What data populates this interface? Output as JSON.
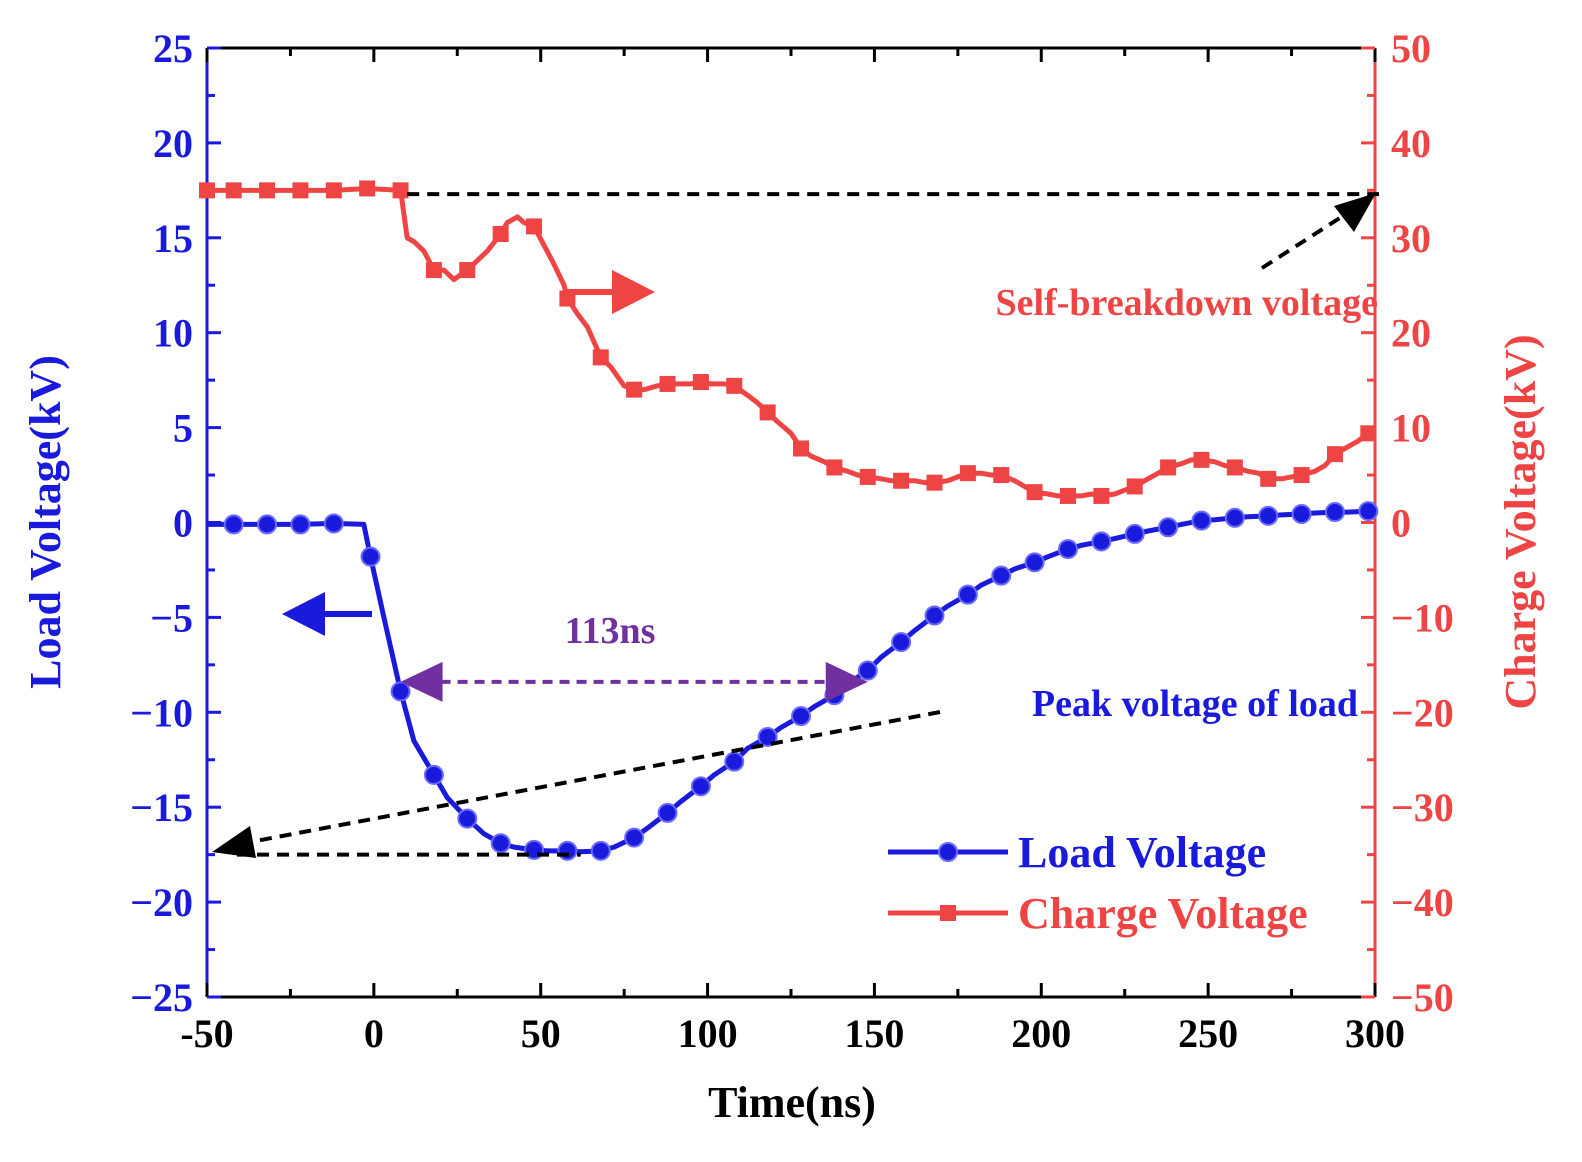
{
  "chart_data": {
    "type": "line",
    "xlabel": "Time(ns)",
    "ylabel_left": "Load Voltage(kV)",
    "ylabel_right": "Charge Voltage(kV)",
    "xlim": [
      -50,
      300
    ],
    "ylim_left": [
      -25,
      25
    ],
    "ylim_right": [
      -50,
      50
    ],
    "x_ticks": [
      "-50",
      "0",
      "50",
      "100",
      "150",
      "200",
      "250",
      "300"
    ],
    "y_left_ticks": [
      "25",
      "20",
      "15",
      "10",
      "5",
      "0",
      "−5",
      "−10",
      "−15",
      "−20",
      "−25"
    ],
    "y_right_ticks": [
      "50",
      "40",
      "30",
      "20",
      "10",
      "0",
      "−10",
      "−20",
      "−30",
      "−40",
      "−50"
    ],
    "grid": false,
    "legend_position": "bottom-right",
    "colors": {
      "load": "#1a1adc",
      "charge": "#ee4444",
      "left_axis": "#1a1adc",
      "right_axis": "#ee4444",
      "annotation_black": "#000000",
      "annotation_purple": "#7030a0"
    },
    "series": [
      {
        "name": "Load Voltage",
        "axis": "left",
        "marker": "circle",
        "x": [
          -50,
          -42,
          -32,
          -22,
          -12,
          -3,
          -1,
          3,
          8,
          12,
          18,
          22,
          28,
          33,
          38,
          42,
          48,
          52,
          58,
          62,
          68,
          72,
          78,
          82,
          88,
          92,
          98,
          102,
          108,
          112,
          118,
          122,
          128,
          132,
          138,
          142,
          148,
          152,
          158,
          162,
          168,
          172,
          178,
          182,
          188,
          192,
          198,
          202,
          208,
          212,
          218,
          222,
          228,
          232,
          238,
          242,
          248,
          252,
          258,
          262,
          268,
          272,
          278,
          282,
          288,
          292,
          298,
          300
        ],
        "y": [
          -0.1,
          -0.1,
          -0.1,
          -0.1,
          -0.05,
          -0.1,
          -1.8,
          -5.0,
          -8.9,
          -11.5,
          -13.3,
          -14.5,
          -15.6,
          -16.4,
          -16.9,
          -17.1,
          -17.25,
          -17.3,
          -17.3,
          -17.35,
          -17.3,
          -17.1,
          -16.6,
          -16.1,
          -15.3,
          -14.7,
          -13.9,
          -13.3,
          -12.6,
          -11.9,
          -11.3,
          -10.8,
          -10.2,
          -9.7,
          -9.1,
          -8.5,
          -7.8,
          -7.1,
          -6.3,
          -5.7,
          -4.9,
          -4.4,
          -3.8,
          -3.3,
          -2.8,
          -2.45,
          -2.1,
          -1.8,
          -1.4,
          -1.2,
          -1.0,
          -0.85,
          -0.6,
          -0.45,
          -0.25,
          -0.1,
          0.1,
          0.15,
          0.25,
          0.3,
          0.35,
          0.4,
          0.45,
          0.5,
          0.55,
          0.55,
          0.6,
          0.65
        ],
        "marker_indices": [
          1,
          2,
          3,
          4,
          6,
          8,
          10,
          12,
          14,
          16,
          18,
          20,
          22,
          24,
          26,
          28,
          30,
          32,
          34,
          36,
          38,
          40,
          42,
          44,
          46,
          48,
          50,
          52,
          54,
          56,
          58,
          60,
          62,
          64,
          66
        ]
      },
      {
        "name": "Charge Voltage",
        "axis": "right",
        "marker": "square",
        "x": [
          -50,
          -42,
          -32,
          -22,
          -12,
          -2,
          8,
          10,
          12,
          15,
          18,
          21,
          24,
          28,
          31,
          34,
          38,
          40,
          43,
          45,
          48,
          51,
          54,
          57,
          58,
          61,
          64,
          68,
          71,
          75,
          78,
          81,
          85,
          88,
          92,
          95,
          98,
          101,
          105,
          108,
          112,
          115,
          118,
          121,
          125,
          128,
          131,
          135,
          138,
          142,
          145,
          148,
          152,
          155,
          158,
          162,
          165,
          168,
          172,
          175,
          178,
          182,
          185,
          188,
          192,
          195,
          198,
          202,
          205,
          208,
          212,
          215,
          218,
          222,
          225,
          228,
          232,
          235,
          238,
          242,
          245,
          248,
          252,
          255,
          258,
          262,
          265,
          268,
          272,
          275,
          278,
          282,
          285,
          288,
          292,
          295,
          298
        ],
        "y": [
          35.0,
          35.0,
          35.0,
          35.0,
          35.0,
          35.2,
          35.0,
          30.0,
          29.6,
          28.6,
          26.6,
          26.6,
          25.6,
          26.6,
          27.6,
          28.6,
          30.4,
          31.6,
          32.2,
          31.6,
          31.2,
          29.2,
          27.2,
          25.0,
          23.6,
          22.0,
          20.6,
          17.4,
          16.4,
          14.4,
          14.0,
          14.0,
          14.4,
          14.6,
          14.6,
          14.6,
          14.8,
          14.6,
          14.6,
          14.4,
          13.4,
          12.6,
          11.6,
          10.6,
          9.4,
          7.8,
          7.0,
          6.4,
          5.8,
          5.4,
          5.0,
          4.8,
          4.6,
          4.4,
          4.4,
          4.4,
          4.2,
          4.2,
          4.4,
          4.8,
          5.2,
          5.2,
          5.0,
          5.0,
          4.4,
          3.8,
          3.2,
          3.0,
          2.8,
          2.8,
          2.8,
          3.0,
          2.8,
          3.0,
          3.4,
          3.8,
          4.6,
          5.2,
          5.8,
          6.2,
          6.6,
          6.6,
          6.4,
          6.0,
          5.8,
          5.4,
          5.2,
          4.6,
          4.6,
          4.8,
          5.0,
          5.4,
          6.0,
          7.2,
          8.0,
          8.6,
          9.4
        ],
        "marker_x": [
          -50,
          -42,
          -32,
          -22,
          -12,
          -2,
          8,
          18,
          28,
          38,
          48,
          58,
          68,
          78,
          88,
          98,
          108,
          118,
          128,
          138,
          148,
          158,
          168,
          178,
          188,
          198,
          208,
          218,
          228,
          238,
          248,
          258,
          268,
          278,
          288,
          298
        ]
      }
    ],
    "annotations": {
      "self_breakdown": "Self-breakdown voltage",
      "peak_load": "Peak voltage of load",
      "fwhm": "113ns"
    },
    "self_breakdown_level_right": 34.6,
    "peak_load_level_left": -17.5,
    "fwhm_range": [
      8,
      148
    ],
    "fwhm_level_left": -8.4,
    "legend": [
      "Load Voltage",
      "Charge Voltage"
    ]
  }
}
